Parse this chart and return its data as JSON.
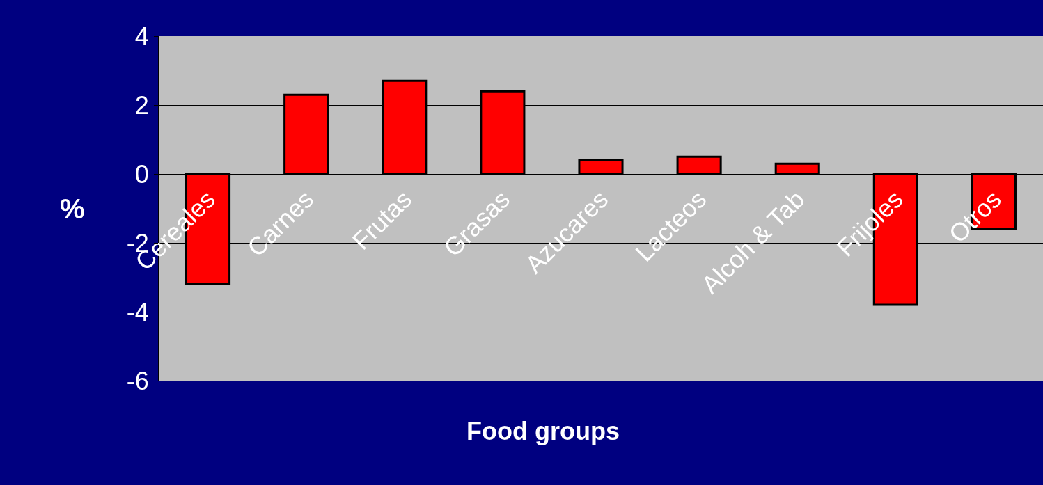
{
  "chart_data": {
    "type": "bar",
    "xlabel": "Food groups",
    "ylabel": "%",
    "categories": [
      "Cereales",
      "Carnes",
      "Frutas",
      "Grasas",
      "Azucares",
      "Lacteos",
      "Alcoh & Tab",
      "Frijoles",
      "Otros"
    ],
    "values": [
      -3.2,
      2.3,
      2.7,
      2.4,
      0.4,
      0.5,
      0.3,
      -3.8,
      -1.6
    ],
    "color": "#ff0000",
    "ylim": [
      -6,
      4
    ],
    "yticks": [
      -6,
      -4,
      -2,
      0,
      2,
      4
    ],
    "grid": "y"
  }
}
